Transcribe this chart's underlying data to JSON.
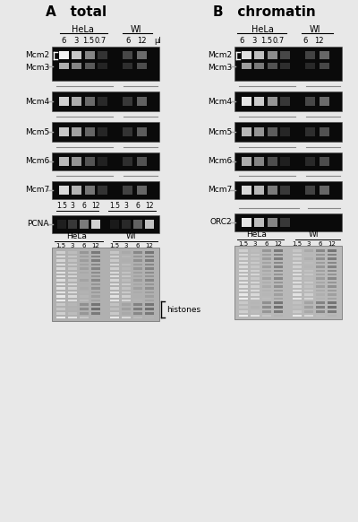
{
  "title_A": "A   total",
  "title_B": "B   chromatin",
  "bg_color": "#e8e8e8",
  "panel_dark": "#0a0a0a",
  "panel_light_bg": "#b8b8b8",
  "histones_label": "histones",
  "ul_label": "μl",
  "A_lane_labels": [
    "6",
    "3",
    "1.5",
    "0.7",
    "6",
    "12"
  ],
  "B_lane_labels": [
    "6",
    "3",
    "1.5",
    "0.7",
    "6",
    "12"
  ],
  "pcna_labels": [
    "1.5",
    "3",
    "6",
    "12",
    "1.5",
    "3",
    "6",
    "12"
  ],
  "coom_labels": [
    "1.5",
    "3",
    "6",
    "12",
    "1.5",
    "3",
    "6",
    "12"
  ]
}
